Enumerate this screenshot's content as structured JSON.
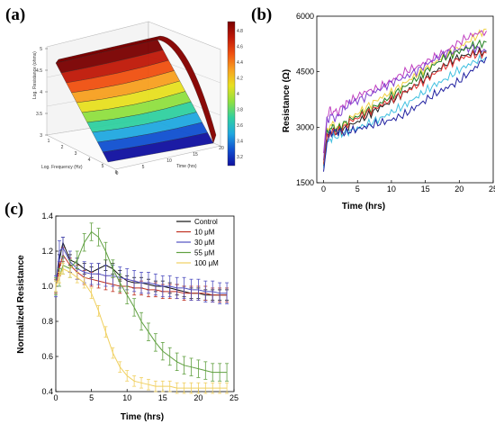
{
  "panels": {
    "a": "(a)",
    "b": "(b)",
    "c": "(c)"
  },
  "chart_data": [
    {
      "type": "surface",
      "panel": "(a)",
      "zlabel": "Log. Resistance (ohms)",
      "xlabel": "Time (hrs)",
      "ylabel": "Log. Frequency (Hz)",
      "z_ticks": [
        "3",
        "3.5",
        "4",
        "4.5",
        "5"
      ],
      "freq_ticks": [
        "1",
        "2",
        "3",
        "4",
        "5",
        "6"
      ],
      "time_ticks": [
        "0",
        "5",
        "10",
        "15",
        "20"
      ],
      "colorbar_ticks": [
        "4.8",
        "4.6",
        "4.4",
        "4.2",
        "4",
        "3.8",
        "3.6",
        "3.4",
        "3.2"
      ],
      "colormap": [
        "#7a0000",
        "#c01808",
        "#f05010",
        "#f8a020",
        "#e8e020",
        "#90e040",
        "#30d0a0",
        "#20a8e0",
        "#1050d0",
        "#1010a0"
      ],
      "zlim": [
        3,
        5
      ]
    },
    {
      "type": "line",
      "panel": "(b)",
      "xlabel": "Time (hrs)",
      "ylabel": "Resistance (Ω)",
      "xlim": [
        -1,
        25
      ],
      "ylim": [
        1500,
        6000
      ],
      "xticks": [
        "0",
        "5",
        "10",
        "15",
        "20",
        "25"
      ],
      "yticks": [
        "1500",
        "3000",
        "4500",
        "6000"
      ],
      "series": [
        {
          "color": "#f0d040",
          "x": [
            0,
            0.5,
            1,
            2,
            3,
            4,
            6,
            8,
            10,
            12,
            14,
            16,
            18,
            20,
            22,
            24
          ],
          "y": [
            2000,
            2850,
            3100,
            3000,
            3050,
            3250,
            3500,
            3750,
            3950,
            4200,
            4450,
            4700,
            4950,
            5150,
            5400,
            5650
          ]
        },
        {
          "color": "#c040c0",
          "x": [
            0,
            0.5,
            1,
            2,
            3,
            4,
            6,
            8,
            10,
            12,
            14,
            16,
            18,
            20,
            22,
            24
          ],
          "y": [
            2300,
            3300,
            3450,
            3400,
            3600,
            3700,
            3950,
            4050,
            4250,
            4500,
            4650,
            4850,
            5050,
            5300,
            5500,
            5600
          ]
        },
        {
          "color": "#8040d0",
          "x": [
            0,
            0.5,
            1,
            2,
            3,
            4,
            6,
            8,
            10,
            12,
            14,
            16,
            18,
            20,
            22,
            24
          ],
          "y": [
            2100,
            3200,
            3300,
            3250,
            3500,
            3650,
            3800,
            4000,
            4200,
            4350,
            4550,
            4800,
            5000,
            5100,
            5150,
            5050
          ]
        },
        {
          "color": "#208020",
          "x": [
            0,
            0.5,
            1,
            2,
            3,
            4,
            6,
            8,
            10,
            12,
            14,
            16,
            18,
            20,
            22,
            24
          ],
          "y": [
            2000,
            2800,
            3000,
            2950,
            3100,
            3200,
            3400,
            3600,
            3850,
            4100,
            4350,
            4650,
            4900,
            5050,
            5200,
            5300
          ]
        },
        {
          "color": "#202020",
          "x": [
            0,
            0.5,
            1,
            2,
            3,
            4,
            6,
            8,
            10,
            12,
            14,
            16,
            18,
            20,
            22,
            24
          ],
          "y": [
            1950,
            2700,
            2900,
            2850,
            2950,
            3050,
            3250,
            3500,
            3700,
            3950,
            4200,
            4450,
            4700,
            4900,
            5000,
            5050
          ]
        },
        {
          "color": "#e03030",
          "x": [
            0,
            0.5,
            1,
            2,
            3,
            4,
            6,
            8,
            10,
            12,
            14,
            16,
            18,
            20,
            22,
            24
          ],
          "y": [
            2000,
            2700,
            2850,
            2900,
            3000,
            3150,
            3350,
            3550,
            3750,
            3950,
            4150,
            4400,
            4650,
            4850,
            4950,
            5000
          ]
        },
        {
          "color": "#40c0e0",
          "x": [
            0,
            0.5,
            1,
            2,
            3,
            4,
            6,
            8,
            10,
            12,
            14,
            16,
            18,
            20,
            22,
            24
          ],
          "y": [
            1900,
            2500,
            2700,
            2750,
            2850,
            2900,
            3050,
            3200,
            3400,
            3600,
            3850,
            4100,
            4300,
            4550,
            4750,
            4900
          ]
        },
        {
          "color": "#2020a0",
          "x": [
            0,
            0.5,
            1,
            2,
            3,
            4,
            6,
            8,
            10,
            12,
            14,
            16,
            18,
            20,
            22,
            24
          ],
          "y": [
            1800,
            2600,
            2850,
            2900,
            2850,
            2900,
            3000,
            3100,
            3200,
            3350,
            3600,
            3850,
            4050,
            4250,
            4550,
            4900
          ]
        }
      ]
    },
    {
      "type": "line",
      "panel": "(c)",
      "xlabel": "Time (hrs)",
      "ylabel": "Normalized Resistance",
      "xlim": [
        0,
        25
      ],
      "ylim": [
        0.4,
        1.4
      ],
      "xticks": [
        "0",
        "5",
        "10",
        "15",
        "20",
        "25"
      ],
      "yticks": [
        "0.4",
        "0.6",
        "0.8",
        "1.0",
        "1.2",
        "1.4"
      ],
      "legend_position": "top-right",
      "series": [
        {
          "name": "Control",
          "color": "#101010",
          "x": [
            0,
            0.5,
            1,
            2,
            3,
            4,
            5,
            6,
            7,
            8,
            9,
            10,
            11,
            12,
            13,
            14,
            15,
            16,
            17,
            18,
            19,
            20,
            21,
            22,
            23,
            24
          ],
          "y": [
            1.0,
            1.15,
            1.25,
            1.15,
            1.13,
            1.1,
            1.08,
            1.1,
            1.12,
            1.1,
            1.06,
            1.03,
            1.02,
            1.02,
            1.01,
            1.0,
            1.0,
            0.99,
            0.98,
            0.97,
            0.96,
            0.96,
            0.95,
            0.95,
            0.95,
            0.95
          ],
          "err": 0.03
        },
        {
          "name": "10 μM",
          "color": "#c03020",
          "x": [
            0,
            0.5,
            1,
            2,
            3,
            4,
            5,
            6,
            7,
            8,
            9,
            10,
            11,
            12,
            13,
            14,
            15,
            16,
            17,
            18,
            19,
            20,
            21,
            22,
            23,
            24
          ],
          "y": [
            1.0,
            1.1,
            1.18,
            1.12,
            1.08,
            1.05,
            1.04,
            1.03,
            1.02,
            1.01,
            1.0,
            1.0,
            0.99,
            0.99,
            0.98,
            0.98,
            0.97,
            0.97,
            0.97,
            0.96,
            0.96,
            0.96,
            0.96,
            0.95,
            0.95,
            0.95
          ],
          "err": 0.04
        },
        {
          "name": "30 μM",
          "color": "#5050c0",
          "x": [
            0,
            0.5,
            1,
            2,
            3,
            4,
            5,
            6,
            7,
            8,
            9,
            10,
            11,
            12,
            13,
            14,
            15,
            16,
            17,
            18,
            19,
            20,
            21,
            22,
            23,
            24
          ],
          "y": [
            1.0,
            1.2,
            1.22,
            1.14,
            1.1,
            1.08,
            1.07,
            1.07,
            1.06,
            1.06,
            1.05,
            1.04,
            1.03,
            1.02,
            1.02,
            1.01,
            1.0,
            1.0,
            0.99,
            0.99,
            0.98,
            0.98,
            0.97,
            0.97,
            0.96,
            0.96
          ],
          "err": 0.06
        },
        {
          "name": "55 μM",
          "color": "#60a040",
          "x": [
            0,
            0.5,
            1,
            2,
            3,
            4,
            5,
            6,
            7,
            8,
            9,
            10,
            11,
            12,
            13,
            14,
            15,
            16,
            17,
            18,
            19,
            20,
            21,
            22,
            23,
            24
          ],
          "y": [
            1.0,
            1.05,
            1.12,
            1.1,
            1.15,
            1.25,
            1.31,
            1.28,
            1.2,
            1.1,
            1.02,
            0.95,
            0.88,
            0.8,
            0.74,
            0.68,
            0.63,
            0.6,
            0.57,
            0.55,
            0.54,
            0.53,
            0.52,
            0.51,
            0.51,
            0.51
          ],
          "err": 0.05
        },
        {
          "name": "100 μM",
          "color": "#f0d060",
          "x": [
            0,
            0.5,
            1,
            2,
            3,
            4,
            5,
            6,
            7,
            8,
            9,
            10,
            11,
            12,
            13,
            14,
            15,
            16,
            17,
            18,
            19,
            20,
            21,
            22,
            23,
            24
          ],
          "y": [
            1.0,
            1.05,
            1.1,
            1.08,
            1.05,
            1.02,
            0.96,
            0.86,
            0.74,
            0.62,
            0.54,
            0.49,
            0.46,
            0.45,
            0.44,
            0.43,
            0.43,
            0.43,
            0.42,
            0.42,
            0.42,
            0.42,
            0.42,
            0.42,
            0.42,
            0.42
          ],
          "err": 0.03
        }
      ]
    }
  ]
}
